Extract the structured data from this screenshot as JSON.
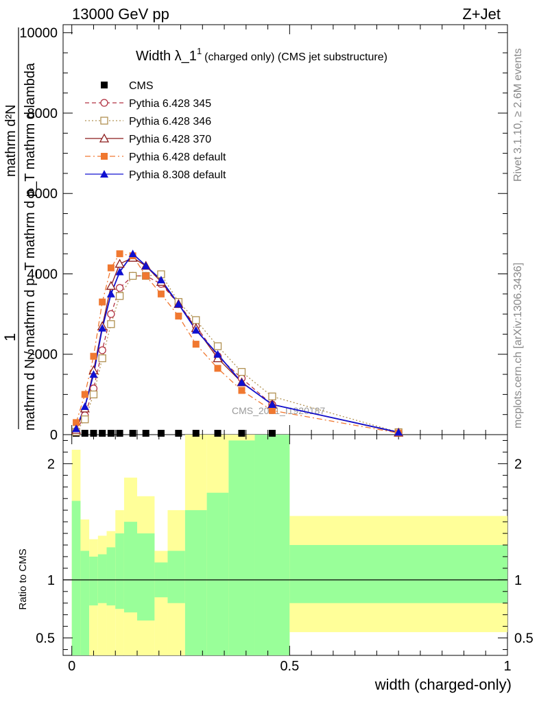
{
  "header": {
    "left": "13000 GeV pp",
    "right": "Z+Jet"
  },
  "side_labels": {
    "rivet": "Rivet 3.1.10, ≥ 2.6M events",
    "mcplots": "mcplots.cern.ch [arXiv:1306.3436]"
  },
  "watermark": "CMS_2021_I1920187",
  "chart_data": [
    {
      "type": "line",
      "title": "Width λ_1",
      "title_sup": "1",
      "title_suffix": "(charged only) (CMS jet substructure)",
      "xlabel": "width (charged-only)",
      "ylabel_num": "1",
      "ylabel_den": "mathrm d N / mathrm d p_T mathrm d p_T mathrm d lambda",
      "ylabel_top": "mathrm d²N",
      "xlim": [
        -0.02,
        1.0
      ],
      "ylim": [
        0,
        10200
      ],
      "yticks": [
        0,
        2000,
        4000,
        6000,
        8000,
        10000
      ],
      "ytick_labels": [
        "0",
        "2000",
        "4000",
        "6000",
        "8000",
        "10000"
      ],
      "grid": false,
      "legend_position": "top-left",
      "x": [
        0.01,
        0.03,
        0.05,
        0.07,
        0.09,
        0.11,
        0.14,
        0.17,
        0.205,
        0.245,
        0.285,
        0.335,
        0.39,
        0.46,
        0.75
      ],
      "series": [
        {
          "name": "CMS",
          "color": "#000000",
          "marker": "square-filled",
          "line": "none",
          "values": [
            0,
            0,
            0,
            0,
            0,
            0,
            0,
            0,
            0,
            0,
            0,
            0,
            0,
            0,
            0
          ]
        },
        {
          "name": "Pythia 6.428 345",
          "color": "#b03040",
          "marker": "circle-open",
          "line": "dashed",
          "values": [
            90,
            480,
            1150,
            2100,
            3000,
            3650,
            3950,
            3950,
            3750,
            3250,
            2700,
            1950,
            1400,
            750,
            60
          ]
        },
        {
          "name": "Pythia 6.428 346",
          "color": "#b09050",
          "marker": "square-open",
          "line": "dotted",
          "values": [
            70,
            380,
            1000,
            1900,
            2750,
            3450,
            3950,
            3950,
            3990,
            3300,
            2850,
            2200,
            1560,
            950,
            60
          ]
        },
        {
          "name": "Pythia 6.428 370",
          "color": "#8b1a1a",
          "marker": "triangle-open",
          "line": "solid",
          "values": [
            120,
            650,
            1600,
            2700,
            3700,
            4250,
            4400,
            4200,
            3800,
            3250,
            2650,
            1900,
            1300,
            750,
            50
          ]
        },
        {
          "name": "Pythia 6.428 default",
          "color": "#f07830",
          "marker": "square-filled",
          "line": "dashdot",
          "values": [
            300,
            1000,
            1950,
            3300,
            4150,
            4500,
            4450,
            3950,
            3500,
            2950,
            2250,
            1650,
            1100,
            600,
            40
          ]
        },
        {
          "name": "Pythia 8.308 default",
          "color": "#1010d0",
          "marker": "triangle-filled",
          "line": "solid",
          "values": [
            150,
            700,
            1500,
            2650,
            3500,
            4050,
            4500,
            4200,
            3850,
            3250,
            2600,
            2000,
            1300,
            750,
            60
          ]
        }
      ]
    },
    {
      "type": "area",
      "ylabel": "Ratio to CMS",
      "xlim": [
        -0.02,
        1.0
      ],
      "ylim": [
        0.35,
        2.25
      ],
      "yticks": [
        0.5,
        1,
        2
      ],
      "ytick_labels": [
        "0.5",
        "1",
        "2"
      ],
      "xticks": [
        0,
        0.5,
        1
      ],
      "xtick_labels": [
        "0",
        "0.5",
        "1"
      ],
      "reference_line": 1,
      "bins": [
        0,
        0.02,
        0.04,
        0.06,
        0.08,
        0.1,
        0.12,
        0.15,
        0.19,
        0.22,
        0.26,
        0.31,
        0.36,
        0.42,
        0.5,
        1.0
      ],
      "band_yellow_upper": [
        2.12,
        1.52,
        1.35,
        1.38,
        1.42,
        1.6,
        1.88,
        1.72,
        1.25,
        1.6,
        2.25,
        2.25,
        2.25,
        2.25,
        1.55
      ],
      "band_yellow_lower": [
        0.35,
        0.35,
        0.35,
        0.35,
        0.35,
        0.35,
        0.35,
        0.35,
        0.35,
        0.35,
        0.35,
        0.38,
        0.35,
        0.35,
        0.55
      ],
      "band_green_upper": [
        1.68,
        1.25,
        1.2,
        1.22,
        1.28,
        1.4,
        1.5,
        1.4,
        1.15,
        1.25,
        1.6,
        1.75,
        2.2,
        2.25,
        1.3
      ],
      "band_green_lower": [
        0.35,
        0.35,
        0.78,
        0.8,
        0.78,
        0.75,
        0.72,
        0.65,
        0.85,
        0.8,
        0.35,
        0.35,
        0.35,
        0.35,
        0.8
      ]
    }
  ]
}
